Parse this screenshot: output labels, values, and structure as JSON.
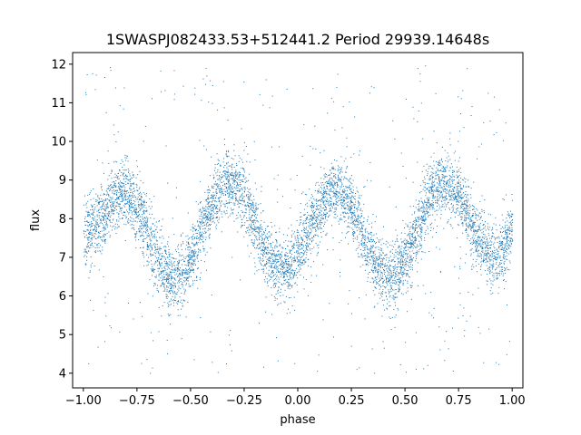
{
  "chart_data": {
    "type": "scatter",
    "title": "1SWASPJ082433.53+512441.2 Period 29939.14648s",
    "xlabel": "phase",
    "ylabel": "flux",
    "xlim": [
      -1.05,
      1.05
    ],
    "ylim": [
      3.62,
      12.3
    ],
    "grid": false,
    "legend": "none",
    "marker_color": "#1f77b4",
    "x_ticks": [
      -1.0,
      -0.75,
      -0.5,
      -0.25,
      0.0,
      0.25,
      0.5,
      0.75,
      1.0
    ],
    "x_tick_labels": [
      "−1.00",
      "−0.75",
      "−0.50",
      "−0.25",
      "0.00",
      "0.25",
      "0.50",
      "0.75",
      "1.00"
    ],
    "y_ticks": [
      4,
      5,
      6,
      7,
      8,
      9,
      10,
      11,
      12
    ],
    "y_tick_labels": [
      "4",
      "5",
      "6",
      "7",
      "8",
      "9",
      "10",
      "11",
      "12"
    ],
    "series": [
      {
        "x_range": [
          -1.0,
          1.0
        ],
        "phase_folded": true,
        "envelope_x": [
          -1.0,
          -0.82,
          -0.58,
          -0.32,
          -0.07,
          0.18,
          0.43,
          0.68,
          0.93,
          1.0
        ],
        "envelope_y": [
          7.6,
          8.7,
          6.5,
          8.9,
          6.7,
          8.7,
          6.5,
          8.9,
          7.0,
          7.7
        ],
        "band_width": 1.0,
        "scatter_range": [
          4.0,
          12.0
        ]
      }
    ]
  }
}
